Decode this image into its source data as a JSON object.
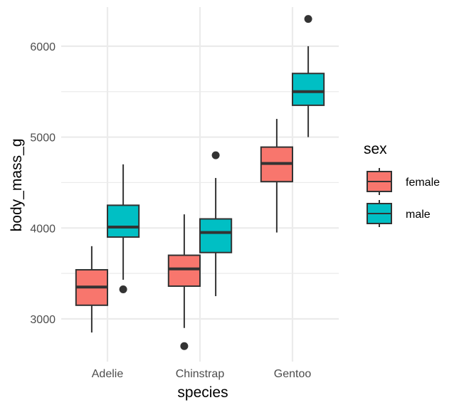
{
  "chart_data": {
    "type": "boxplot",
    "title": "",
    "xlabel": "species",
    "ylabel": "body_mass_g",
    "categories": [
      "Adelie",
      "Chinstrap",
      "Gentoo"
    ],
    "ylim": [
      2530,
      6430
    ],
    "yticks": [
      3000,
      4000,
      5000,
      6000
    ],
    "grid": true,
    "legend": {
      "title": "sex",
      "position": "right",
      "entries": [
        {
          "label": "female",
          "color": "#F8766D"
        },
        {
          "label": "male",
          "color": "#00BFC4"
        }
      ]
    },
    "series": [
      {
        "name": "female",
        "color": "#F8766D",
        "boxes": [
          {
            "category": "Adelie",
            "whisker_low": 2850,
            "q1": 3150,
            "median": 3350,
            "q3": 3540,
            "whisker_high": 3800,
            "outliers": []
          },
          {
            "category": "Chinstrap",
            "whisker_low": 2900,
            "q1": 3360,
            "median": 3550,
            "q3": 3700,
            "whisker_high": 4150,
            "outliers": [
              2700
            ]
          },
          {
            "category": "Gentoo",
            "whisker_low": 3950,
            "q1": 4510,
            "median": 4710,
            "q3": 4890,
            "whisker_high": 5200,
            "outliers": []
          }
        ]
      },
      {
        "name": "male",
        "color": "#00BFC4",
        "boxes": [
          {
            "category": "Adelie",
            "whisker_low": 3430,
            "q1": 3900,
            "median": 4010,
            "q3": 4250,
            "whisker_high": 4700,
            "outliers": [
              3325
            ]
          },
          {
            "category": "Chinstrap",
            "whisker_low": 3250,
            "q1": 3730,
            "median": 3950,
            "q3": 4100,
            "whisker_high": 4550,
            "outliers": [
              4800
            ]
          },
          {
            "category": "Gentoo",
            "whisker_low": 5000,
            "q1": 5350,
            "median": 5500,
            "q3": 5700,
            "whisker_high": 6000,
            "outliers": [
              6300
            ]
          }
        ]
      }
    ]
  }
}
